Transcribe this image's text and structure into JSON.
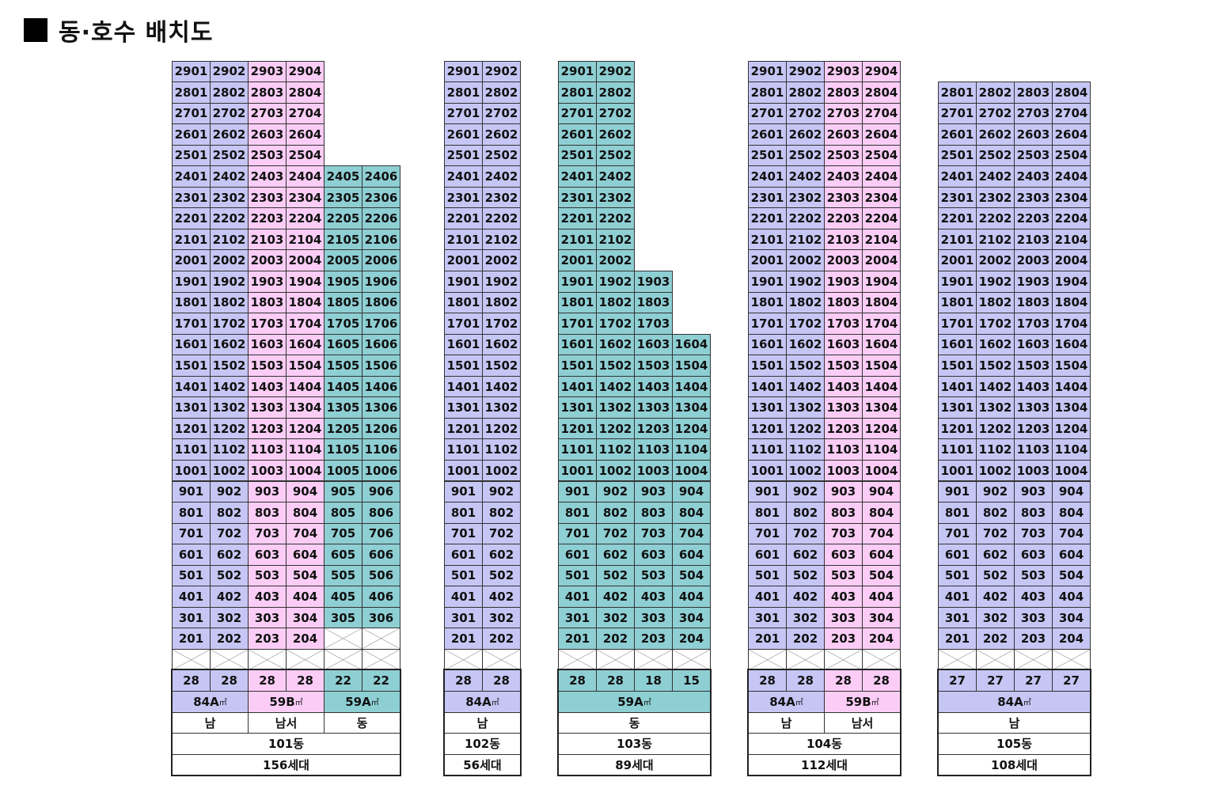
{
  "title": "동·호수 배치도",
  "unit_symbol": "㎡",
  "colors": {
    "84A": "#c6c6f5",
    "59B": "#fbcdf6",
    "59A": "#8ecfd4",
    "blank": "#ffffff"
  },
  "buildings": [
    {
      "name": "101동",
      "households": "156세대",
      "columns": [
        {
          "line": "01",
          "type": "84A",
          "top": 29,
          "bottom": 2,
          "count": "28"
        },
        {
          "line": "02",
          "type": "84A",
          "top": 29,
          "bottom": 2,
          "count": "28"
        },
        {
          "line": "03",
          "type": "59B",
          "top": 29,
          "bottom": 2,
          "count": "28"
        },
        {
          "line": "04",
          "type": "59B",
          "top": 29,
          "bottom": 2,
          "count": "28"
        },
        {
          "line": "05",
          "type": "59A",
          "top": 24,
          "bottom": 3,
          "count": "22"
        },
        {
          "line": "06",
          "type": "59A",
          "top": 24,
          "bottom": 3,
          "count": "22"
        }
      ],
      "type_groups": [
        {
          "label": "84A",
          "type": "84A",
          "span": 2
        },
        {
          "label": "59B",
          "type": "59B",
          "span": 2
        },
        {
          "label": "59A",
          "type": "59A",
          "span": 2
        }
      ],
      "direction_groups": [
        {
          "label": "남",
          "span": 2
        },
        {
          "label": "남서",
          "span": 2
        },
        {
          "label": "동",
          "span": 2
        }
      ]
    },
    {
      "name": "102동",
      "households": "56세대",
      "columns": [
        {
          "line": "01",
          "type": "84A",
          "top": 29,
          "bottom": 2,
          "count": "28"
        },
        {
          "line": "02",
          "type": "84A",
          "top": 29,
          "bottom": 2,
          "count": "28"
        }
      ],
      "type_groups": [
        {
          "label": "84A",
          "type": "84A",
          "span": 2
        }
      ],
      "direction_groups": [
        {
          "label": "남",
          "span": 2
        }
      ]
    },
    {
      "name": "103동",
      "households": "89세대",
      "columns": [
        {
          "line": "01",
          "type": "59A",
          "top": 29,
          "bottom": 2,
          "count": "28"
        },
        {
          "line": "02",
          "type": "59A",
          "top": 29,
          "bottom": 2,
          "count": "28"
        },
        {
          "line": "03",
          "type": "59A",
          "top": 19,
          "bottom": 2,
          "count": "18"
        },
        {
          "line": "04",
          "type": "59A",
          "top": 16,
          "bottom": 2,
          "count": "15"
        }
      ],
      "type_groups": [
        {
          "label": "59A",
          "type": "59A",
          "span": 4
        }
      ],
      "direction_groups": [
        {
          "label": "동",
          "span": 4
        }
      ]
    },
    {
      "name": "104동",
      "households": "112세대",
      "columns": [
        {
          "line": "01",
          "type": "84A",
          "top": 29,
          "bottom": 2,
          "count": "28"
        },
        {
          "line": "02",
          "type": "84A",
          "top": 29,
          "bottom": 2,
          "count": "28"
        },
        {
          "line": "03",
          "type": "59B",
          "top": 29,
          "bottom": 2,
          "count": "28"
        },
        {
          "line": "04",
          "type": "59B",
          "top": 29,
          "bottom": 2,
          "count": "28"
        }
      ],
      "type_groups": [
        {
          "label": "84A",
          "type": "84A",
          "span": 2
        },
        {
          "label": "59B",
          "type": "59B",
          "span": 2
        }
      ],
      "direction_groups": [
        {
          "label": "남",
          "span": 2
        },
        {
          "label": "남서",
          "span": 2
        }
      ]
    },
    {
      "name": "105동",
      "households": "108세대",
      "columns": [
        {
          "line": "01",
          "type": "84A",
          "top": 28,
          "bottom": 2,
          "count": "27"
        },
        {
          "line": "02",
          "type": "84A",
          "top": 28,
          "bottom": 2,
          "count": "27"
        },
        {
          "line": "03",
          "type": "84A",
          "top": 28,
          "bottom": 2,
          "count": "27"
        },
        {
          "line": "04",
          "type": "84A",
          "top": 28,
          "bottom": 2,
          "count": "27"
        }
      ],
      "type_groups": [
        {
          "label": "84A",
          "type": "84A",
          "span": 4
        }
      ],
      "direction_groups": [
        {
          "label": "남",
          "span": 4
        }
      ]
    }
  ]
}
